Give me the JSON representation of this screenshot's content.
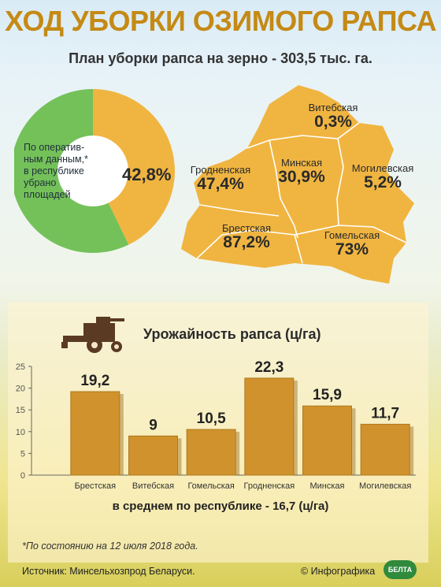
{
  "title": "ХОД УБОРКИ ОЗИМОГО РАПСА",
  "subtitle": "План уборки рапса на зерно - 303,5 тыс. га.",
  "donut": {
    "note_lines": [
      "По оператив-",
      "ным данным,*",
      "в республике",
      "убрано",
      "площадей"
    ],
    "percent_label": "42,8%",
    "percent_value": 42.8,
    "colors": {
      "done": "#f0b541",
      "rest": "#74c15a"
    }
  },
  "map": {
    "fill_color": "#f0b541",
    "regions": [
      {
        "name": "Витебская",
        "percent": "0,3%"
      },
      {
        "name": "Гродненская",
        "percent": "47,4%"
      },
      {
        "name": "Минская",
        "percent": "30,9%"
      },
      {
        "name": "Могилевская",
        "percent": "5,2%"
      },
      {
        "name": "Брестская",
        "percent": "87,2%"
      },
      {
        "name": "Гомельская",
        "percent": "73%"
      }
    ]
  },
  "chart_title": "Урожайность рапса (ц/га)",
  "chart_data": {
    "type": "bar",
    "title": "Урожайность рапса (ц/га)",
    "categories": [
      "Брестская",
      "Витебская",
      "Гомельская",
      "Гродненская",
      "Минская",
      "Могилевская"
    ],
    "values": [
      19.2,
      9,
      10.5,
      22.3,
      15.9,
      11.7
    ],
    "value_labels": [
      "19,2",
      "9",
      "10,5",
      "22,3",
      "15,9",
      "11,7"
    ],
    "ylim": [
      0,
      25
    ],
    "yticks": [
      0,
      5,
      10,
      15,
      20,
      25
    ],
    "grid": false,
    "bar_color": "#d0922c"
  },
  "average_text": "в среднем по республике - 16,7 (ц/га)",
  "footnote": "*По состоянию на 12 июля 2018 года.",
  "source": "Источник: Минсельхозпрод Беларуси.",
  "credit": "© Инфографика",
  "logo_text": "БЕЛТА"
}
